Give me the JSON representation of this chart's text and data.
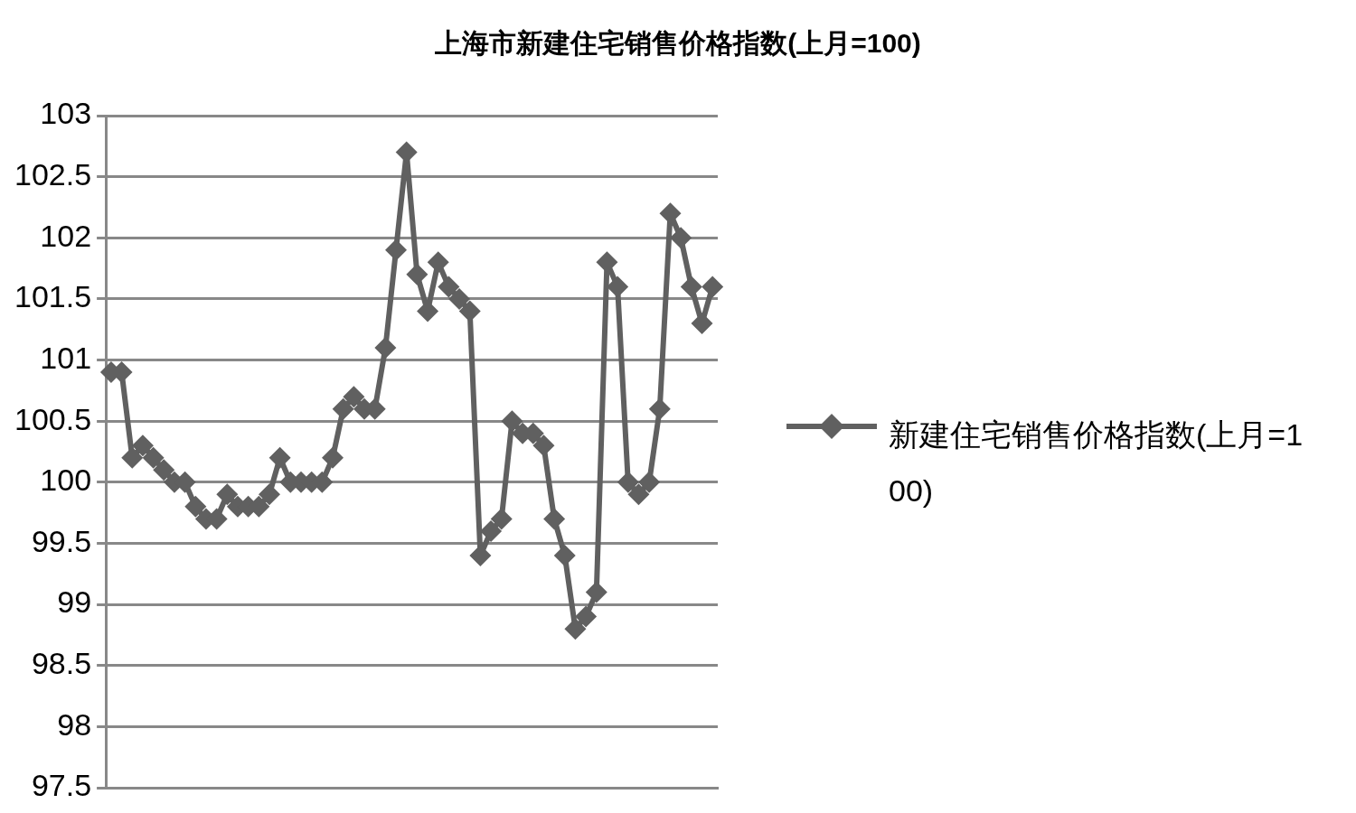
{
  "chart_data": {
    "type": "line",
    "title": "上海市新建住宅销售价格指数(上月=100)",
    "categories": [
      null,
      null,
      null,
      null,
      null,
      null,
      null,
      null,
      null,
      null,
      null,
      null,
      null,
      null,
      null,
      null,
      null,
      null,
      null,
      null,
      null,
      null,
      null,
      null,
      null,
      null,
      null,
      null,
      null,
      null,
      null,
      null,
      null,
      null,
      null,
      null,
      null,
      null,
      null,
      null,
      null,
      null,
      null,
      null,
      null,
      null,
      null,
      null,
      null,
      null,
      null,
      null,
      null,
      null,
      null,
      null,
      null,
      null
    ],
    "series": [
      {
        "name": "新建住宅销售价格指数(上月=100)",
        "color": "#606060",
        "values": [
          100.9,
          100.9,
          100.2,
          100.3,
          100.2,
          100.1,
          100.0,
          100.0,
          99.8,
          99.7,
          99.7,
          99.9,
          99.8,
          99.8,
          99.8,
          99.9,
          100.2,
          100.0,
          100.0,
          100.0,
          100.0,
          100.2,
          100.6,
          100.7,
          100.6,
          100.6,
          101.1,
          101.9,
          102.7,
          101.7,
          101.4,
          101.8,
          101.6,
          101.5,
          101.4,
          99.4,
          99.6,
          99.7,
          100.5,
          100.4,
          100.4,
          100.3,
          99.7,
          99.4,
          98.8,
          98.9,
          99.1,
          101.8,
          101.6,
          100.0,
          99.9,
          100.0,
          100.6,
          102.2,
          102.0,
          101.6,
          101.3,
          101.6
        ]
      }
    ],
    "ylim": [
      97.5,
      103
    ],
    "yticks": [
      97.5,
      98,
      98.5,
      99,
      99.5,
      100,
      100.5,
      101,
      101.5,
      102,
      102.5,
      103
    ],
    "grid": "y",
    "legend": "right",
    "tick_labels": "y",
    "marker": "diamond",
    "line_style": "solid"
  }
}
